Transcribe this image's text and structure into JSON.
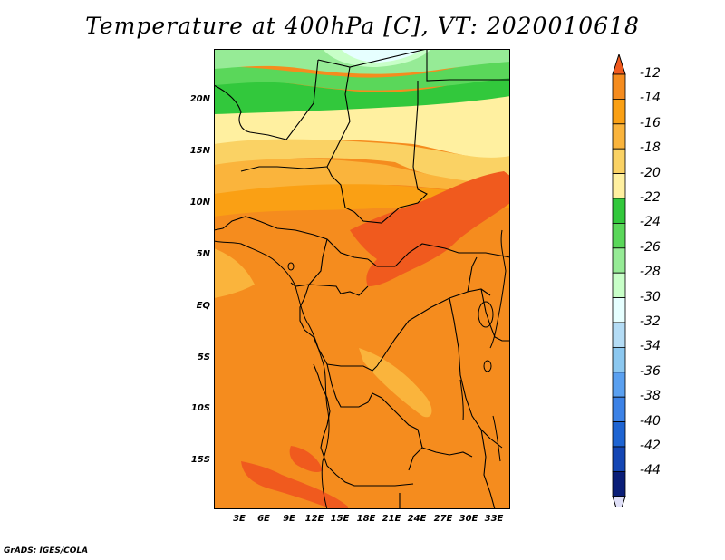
{
  "title": "Temperature at 400hPa [C], VT: 2020010618",
  "credit": "GrADS: IGES/COLA",
  "lat_labels": [
    "20N",
    "15N",
    "10N",
    "5N",
    "EQ",
    "5S",
    "10S",
    "15S"
  ],
  "lon_labels": [
    "3E",
    "6E",
    "9E",
    "12E",
    "15E",
    "18E",
    "21E",
    "24E",
    "27E",
    "30E",
    "33E"
  ],
  "colorbar": {
    "labels": [
      "-12",
      "-14",
      "-16",
      "-18",
      "-20",
      "-22",
      "-24",
      "-26",
      "-28",
      "-30",
      "-32",
      "-34",
      "-36",
      "-38",
      "-40",
      "-42",
      "-44"
    ],
    "colors": [
      "#f05a1e",
      "#f58c1e",
      "#faa014",
      "#fab43c",
      "#fad264",
      "#fff0a0",
      "#32c83c",
      "#5ad75a",
      "#96eb96",
      "#c8ffc8",
      "#e6ffff",
      "#b4dcf5",
      "#8cc8f0",
      "#5aa0f0",
      "#3c82e6",
      "#1e64d2",
      "#1446b4",
      "#0a1e78",
      "#e0e0f8"
    ]
  },
  "map_colors": {
    "m12": "#f05a1e",
    "m14": "#f58c1e",
    "m16": "#faa014",
    "m18": "#fab43c",
    "m20": "#fad264",
    "m22": "#fff0a0",
    "m24": "#32c83c",
    "m26": "#5ad75a",
    "m28": "#96eb96",
    "m30": "#c8ffc8",
    "m32": "#e6ffff",
    "line": "#000000"
  }
}
